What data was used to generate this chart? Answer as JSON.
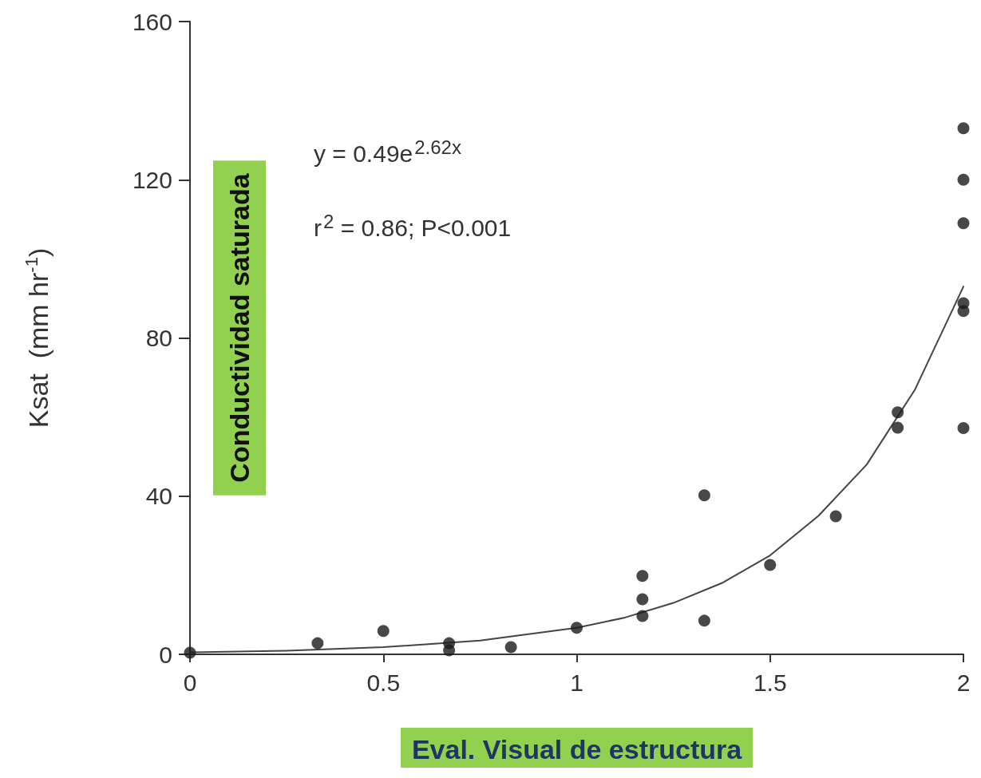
{
  "chart_data": {
    "type": "scatter",
    "xlabel": "Eval. Visual de estructura",
    "ylabel": "Ksat  (mm hr$^{-1}$)",
    "annotations": [
      "y = 0.49e$^{2.62x}$",
      "r$^{2}$ = 0.86; P<0.001",
      "Conductividad saturada"
    ],
    "xlim": [
      0,
      2
    ],
    "xticks": [
      0,
      0.5,
      1,
      1.5,
      2
    ],
    "ylim": [
      0,
      160
    ],
    "yticks": [
      0,
      40,
      80,
      120,
      160
    ],
    "grid": false,
    "marker": "circle",
    "series": [
      {
        "color": "#1a1a1a",
        "x": [
          0,
          0.33,
          0.5,
          0.67,
          0.67,
          0.83,
          1,
          1.17,
          1.17,
          1.17,
          1.33,
          1.33,
          1.5,
          1.67,
          1.83,
          1.83,
          2,
          2,
          2,
          2,
          2,
          2
        ],
        "values": [
          0.4,
          2.8,
          5.9,
          2.8,
          1,
          1.8,
          6.7,
          19.8,
          13.9,
          9.7,
          40.2,
          8.5,
          22.6,
          34.9,
          61.2,
          57.3,
          133,
          120,
          109,
          88.8,
          86.8,
          57.2
        ]
      },
      {
        "type": "line",
        "color": "#444444",
        "line_style": "solid",
        "marker": "none",
        "x": [
          0,
          0.25,
          0.5,
          0.75,
          1,
          1.125,
          1.25,
          1.375,
          1.5,
          1.625,
          1.75,
          1.875,
          2
        ],
        "values": [
          0.5,
          0.9,
          1.8,
          3.5,
          6.7,
          9.3,
          13,
          18,
          25,
          35,
          48,
          67,
          93
        ]
      }
    ]
  }
}
